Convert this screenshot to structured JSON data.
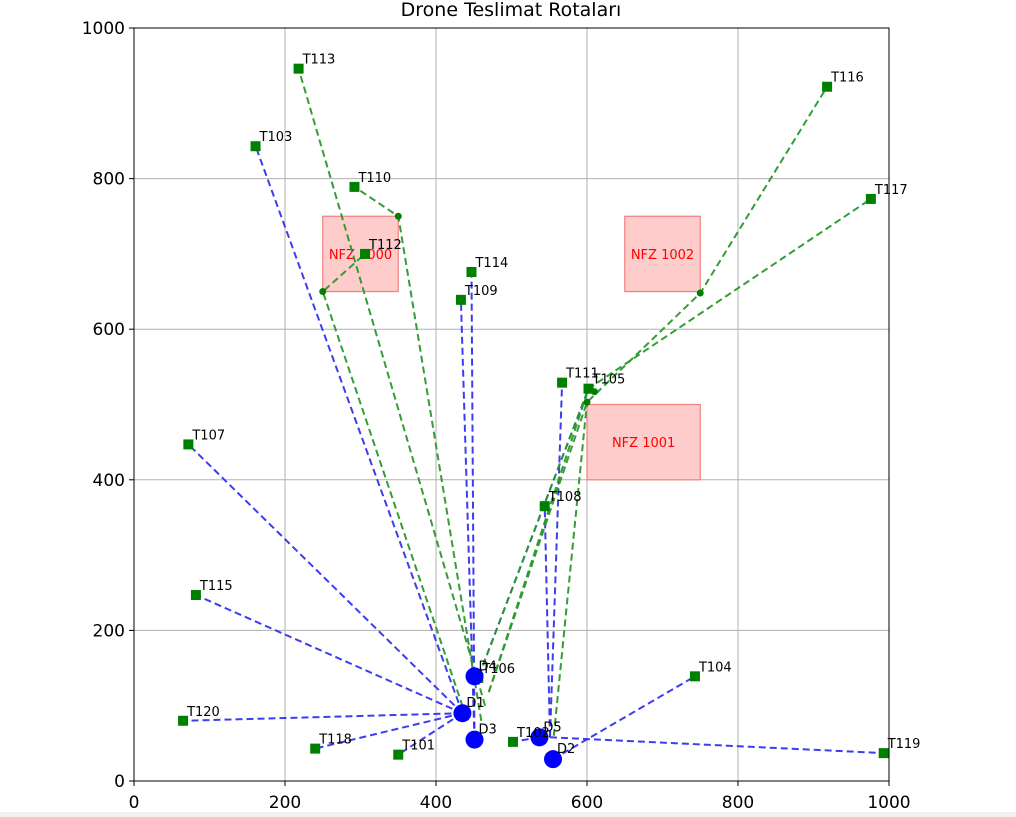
{
  "chart_data": {
    "type": "scatter",
    "title": "Drone Teslimat Rotaları",
    "xlabel": "",
    "ylabel": "",
    "xlim": [
      0,
      1000
    ],
    "ylim": [
      0,
      1000
    ],
    "x_ticks": [
      0,
      200,
      400,
      600,
      800,
      1000
    ],
    "y_ticks": [
      0,
      200,
      400,
      600,
      800,
      1000
    ],
    "grid": true,
    "colors": {
      "depot": "#0000ff",
      "target": "#008000",
      "route_direct": "#3333ee",
      "route_detour": "#2a982a",
      "waypoint": "#008000",
      "nfz_fill": "#ffcccc",
      "nfz_edge": "#f08080",
      "nfz_label": "#ff0000"
    },
    "no_fly_zones": [
      {
        "label": "NFZ 1000",
        "x0": 250,
        "y0": 650,
        "x1": 350,
        "y1": 750
      },
      {
        "label": "NFZ 1001",
        "x0": 600,
        "y0": 400,
        "x1": 750,
        "y1": 500
      },
      {
        "label": "NFZ 1002",
        "x0": 650,
        "y0": 650,
        "x1": 750,
        "y1": 750
      }
    ],
    "depots": [
      {
        "label": "D1",
        "x": 435,
        "y": 90
      },
      {
        "label": "D2",
        "x": 555,
        "y": 29
      },
      {
        "label": "D3",
        "x": 451,
        "y": 55
      },
      {
        "label": "D4",
        "x": 451,
        "y": 139
      },
      {
        "label": "D5",
        "x": 537,
        "y": 58
      }
    ],
    "targets": [
      {
        "label": "T101",
        "x": 350,
        "y": 35
      },
      {
        "label": "T103",
        "x": 161,
        "y": 843
      },
      {
        "label": "T104",
        "x": 743,
        "y": 139
      },
      {
        "label": "T105",
        "x": 602,
        "y": 521
      },
      {
        "label": "T106",
        "x": 456,
        "y": 137
      },
      {
        "label": "T107",
        "x": 72,
        "y": 447
      },
      {
        "label": "T108",
        "x": 544,
        "y": 365
      },
      {
        "label": "T109",
        "x": 433,
        "y": 639
      },
      {
        "label": "T110",
        "x": 292,
        "y": 789
      },
      {
        "label": "T111",
        "x": 567,
        "y": 529
      },
      {
        "label": "T112",
        "x": 306,
        "y": 700
      },
      {
        "label": "T113",
        "x": 218,
        "y": 946
      },
      {
        "label": "T114",
        "x": 447,
        "y": 676
      },
      {
        "label": "T115",
        "x": 82,
        "y": 247
      },
      {
        "label": "T116",
        "x": 918,
        "y": 922
      },
      {
        "label": "T117",
        "x": 976,
        "y": 773
      },
      {
        "label": "T118",
        "x": 240,
        "y": 43
      },
      {
        "label": "T119",
        "x": 993,
        "y": 37
      },
      {
        "label": "T120",
        "x": 65,
        "y": 80
      },
      {
        "label": "T102",
        "x": 502,
        "y": 52
      }
    ],
    "routes": [
      {
        "style": "direct",
        "points": [
          [
            435,
            90
          ],
          [
            161,
            843
          ]
        ]
      },
      {
        "style": "direct",
        "points": [
          [
            435,
            90
          ],
          [
            72,
            447
          ]
        ]
      },
      {
        "style": "direct",
        "points": [
          [
            435,
            90
          ],
          [
            82,
            247
          ]
        ]
      },
      {
        "style": "direct",
        "points": [
          [
            435,
            90
          ],
          [
            65,
            80
          ]
        ]
      },
      {
        "style": "direct",
        "points": [
          [
            435,
            90
          ],
          [
            240,
            43
          ]
        ]
      },
      {
        "style": "direct",
        "points": [
          [
            435,
            90
          ],
          [
            350,
            35
          ]
        ]
      },
      {
        "style": "direct",
        "points": [
          [
            451,
            55
          ],
          [
            433,
            639
          ]
        ]
      },
      {
        "style": "direct",
        "points": [
          [
            451,
            55
          ],
          [
            447,
            676
          ]
        ]
      },
      {
        "style": "direct",
        "points": [
          [
            537,
            58
          ],
          [
            502,
            52
          ]
        ]
      },
      {
        "style": "direct",
        "points": [
          [
            555,
            29
          ],
          [
            743,
            139
          ]
        ]
      },
      {
        "style": "direct",
        "points": [
          [
            551,
            58
          ],
          [
            993,
            37
          ]
        ]
      },
      {
        "style": "direct",
        "points": [
          [
            551,
            58
          ],
          [
            544,
            365
          ]
        ]
      },
      {
        "style": "direct",
        "points": [
          [
            551,
            58
          ],
          [
            567,
            529
          ]
        ]
      },
      {
        "style": "direct",
        "points": [
          [
            457,
            140
          ],
          [
            602,
            521
          ]
        ]
      },
      {
        "style": "detour",
        "points": [
          [
            465,
            100
          ],
          [
            218,
            946
          ]
        ]
      },
      {
        "style": "detour",
        "points": [
          [
            440,
            85
          ],
          [
            250,
            650
          ],
          [
            306,
            700
          ]
        ]
      },
      {
        "style": "detour",
        "points": [
          [
            460,
            80
          ],
          [
            350,
            750
          ],
          [
            292,
            789
          ]
        ]
      },
      {
        "style": "detour",
        "points": [
          [
            470,
            118
          ],
          [
            600,
            503
          ],
          [
            750,
            648
          ],
          [
            918,
            922
          ]
        ]
      },
      {
        "style": "detour",
        "points": [
          [
            470,
            118
          ],
          [
            602,
            521
          ],
          [
            976,
            773
          ]
        ]
      },
      {
        "style": "detour",
        "points": [
          [
            556,
            60
          ],
          [
            600,
            503
          ]
        ]
      },
      {
        "style": "detour",
        "points": [
          [
            457,
            140
          ],
          [
            602,
            521
          ]
        ]
      }
    ],
    "waypoints": [
      {
        "x": 350,
        "y": 750
      },
      {
        "x": 250,
        "y": 650
      },
      {
        "x": 750,
        "y": 648
      },
      {
        "x": 600,
        "y": 503
      },
      {
        "x": 610,
        "y": 517
      }
    ]
  }
}
